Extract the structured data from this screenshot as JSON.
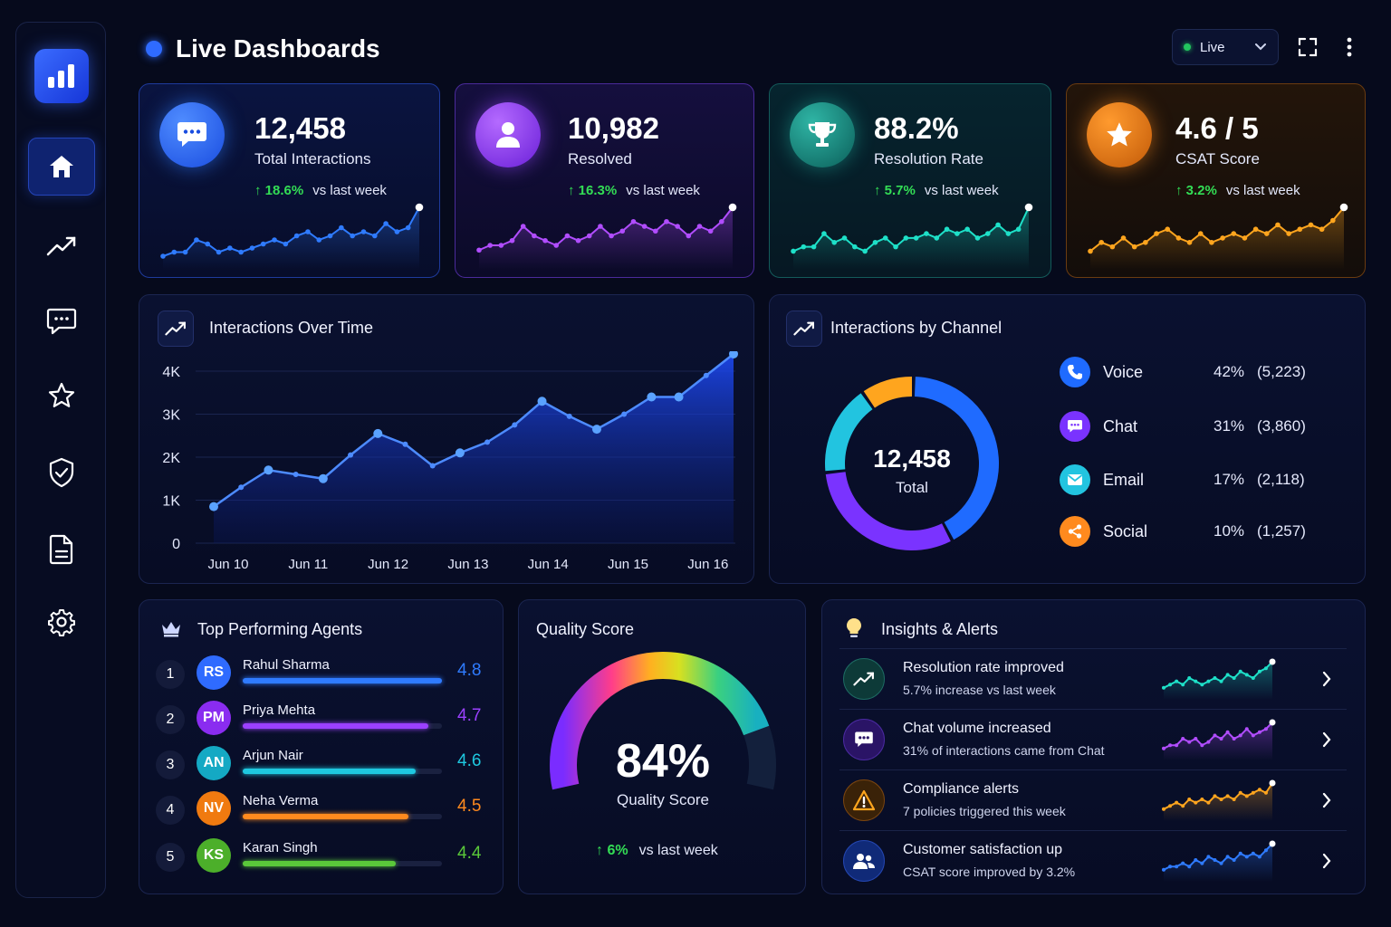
{
  "header": {
    "title": "Live Dashboards",
    "live_label": "Live"
  },
  "sidebar": {
    "items": [
      {
        "name": "home-icon",
        "active": true
      },
      {
        "name": "trend-icon",
        "active": false
      },
      {
        "name": "chat-icon",
        "active": false
      },
      {
        "name": "star-icon",
        "active": false
      },
      {
        "name": "shield-icon",
        "active": false
      },
      {
        "name": "document-icon",
        "active": false
      },
      {
        "name": "gear-icon",
        "active": false
      }
    ]
  },
  "kpis": [
    {
      "value": "12,458",
      "label": "Total Interactions",
      "change": "18.6%",
      "vs": "vs last week",
      "color": "#2f7bff",
      "spark": [
        2,
        3,
        3,
        6,
        5,
        3,
        4,
        3,
        4,
        5,
        6,
        5,
        7,
        8,
        6,
        7,
        9,
        7,
        8,
        7,
        10,
        8,
        9,
        14
      ]
    },
    {
      "value": "10,982",
      "label": "Resolved",
      "change": "16.3%",
      "vs": "vs last week",
      "color": "#b14dff",
      "spark": [
        3,
        4,
        4,
        5,
        8,
        6,
        5,
        4,
        6,
        5,
        6,
        8,
        6,
        7,
        9,
        8,
        7,
        9,
        8,
        6,
        8,
        7,
        9,
        12
      ]
    },
    {
      "value": "88.2%",
      "label": "Resolution Rate",
      "change": "5.7%",
      "vs": "vs last week",
      "color": "#1ee0c8",
      "spark": [
        3,
        4,
        4,
        7,
        5,
        6,
        4,
        3,
        5,
        6,
        4,
        6,
        6,
        7,
        6,
        8,
        7,
        8,
        6,
        7,
        9,
        7,
        8,
        13
      ]
    },
    {
      "value": "4.6 / 5",
      "label": "CSAT Score",
      "change": "3.2%",
      "vs": "vs last week",
      "color": "#ffa51e",
      "spark": [
        3,
        5,
        4,
        6,
        4,
        5,
        7,
        8,
        6,
        5,
        7,
        5,
        6,
        7,
        6,
        8,
        7,
        9,
        7,
        8,
        9,
        8,
        10,
        13
      ]
    }
  ],
  "interactions_over_time": {
    "title": "Interactions Over Time",
    "chart_data": {
      "type": "area",
      "x_ticks": [
        "Jun 10",
        "Jun 11",
        "Jun 12",
        "Jun 13",
        "Jun 14",
        "Jun 15",
        "Jun 16"
      ],
      "y_ticks": [
        "4K",
        "3K",
        "2K",
        "1K",
        "0"
      ],
      "ylim": [
        0,
        4000
      ],
      "values": [
        850,
        1300,
        1700,
        1600,
        1500,
        2050,
        2550,
        2300,
        1800,
        2100,
        2350,
        2750,
        3300,
        2950,
        2650,
        3000,
        3400,
        3400,
        3900,
        4400
      ]
    }
  },
  "interactions_by_channel": {
    "title": "Interactions by Channel",
    "center_value": "12,458",
    "center_label": "Total",
    "chart_data": {
      "type": "pie",
      "slices": [
        {
          "name": "Voice",
          "pct": "42%",
          "count": "(5,223)",
          "value": 42,
          "color": "#1f6bff"
        },
        {
          "name": "Chat",
          "pct": "31%",
          "count": "(3,860)",
          "value": 31,
          "color": "#7a33ff"
        },
        {
          "name": "Email",
          "pct": "17%",
          "count": "(2,118)",
          "value": 17,
          "color": "#22c4e0"
        },
        {
          "name": "Social",
          "pct": "10%",
          "count": "(1,257)",
          "value": 10,
          "color": "#ffa51e"
        }
      ]
    }
  },
  "agents": {
    "title": "Top Performing Agents",
    "rows": [
      {
        "rank": "1",
        "initials": "RS",
        "name": "Rahul Sharma",
        "score": "4.8",
        "fill": 1.0,
        "color": "#2f7bff"
      },
      {
        "rank": "2",
        "initials": "PM",
        "name": "Priya Mehta",
        "score": "4.7",
        "fill": 0.93,
        "color": "#9b40ff"
      },
      {
        "rank": "3",
        "initials": "AN",
        "name": "Arjun Nair",
        "score": "4.6",
        "fill": 0.87,
        "color": "#1ec8e0"
      },
      {
        "rank": "4",
        "initials": "NV",
        "name": "Neha Verma",
        "score": "4.5",
        "fill": 0.83,
        "color": "#ff8a1e"
      },
      {
        "rank": "5",
        "initials": "KS",
        "name": "Karan Singh",
        "score": "4.4",
        "fill": 0.77,
        "color": "#5ac83a"
      }
    ]
  },
  "quality": {
    "title": "Quality Score",
    "value": "84%",
    "label": "Quality Score",
    "change": "6%",
    "vs": "vs last week",
    "fill": 0.84
  },
  "insights": {
    "title": "Insights & Alerts",
    "rows": [
      {
        "title": "Resolution rate improved",
        "sub": "5.7% increase vs last week",
        "color": "#1ee0c8",
        "icon": "trend-up-icon",
        "spark": [
          2,
          3,
          4,
          3,
          5,
          4,
          3,
          4,
          5,
          4,
          6,
          5,
          7,
          6,
          5,
          7,
          8,
          10
        ]
      },
      {
        "title": "Chat volume increased",
        "sub": "31% of interactions came from Chat",
        "color": "#b14dff",
        "icon": "chat-icon",
        "spark": [
          2,
          3,
          3,
          5,
          4,
          5,
          3,
          4,
          6,
          5,
          7,
          5,
          6,
          8,
          6,
          7,
          8,
          10
        ]
      },
      {
        "title": "Compliance alerts",
        "sub": "7 policies triggered this week",
        "color": "#ffa51e",
        "icon": "warning-icon",
        "spark": [
          2,
          3,
          4,
          3,
          5,
          4,
          5,
          4,
          6,
          5,
          6,
          5,
          7,
          6,
          7,
          8,
          7,
          10
        ]
      },
      {
        "title": "Customer satisfaction up",
        "sub": "CSAT score improved by 3.2%",
        "color": "#2f7bff",
        "icon": "users-icon",
        "spark": [
          2,
          3,
          3,
          4,
          3,
          5,
          4,
          6,
          5,
          4,
          6,
          5,
          7,
          6,
          7,
          6,
          8,
          10
        ]
      }
    ]
  }
}
